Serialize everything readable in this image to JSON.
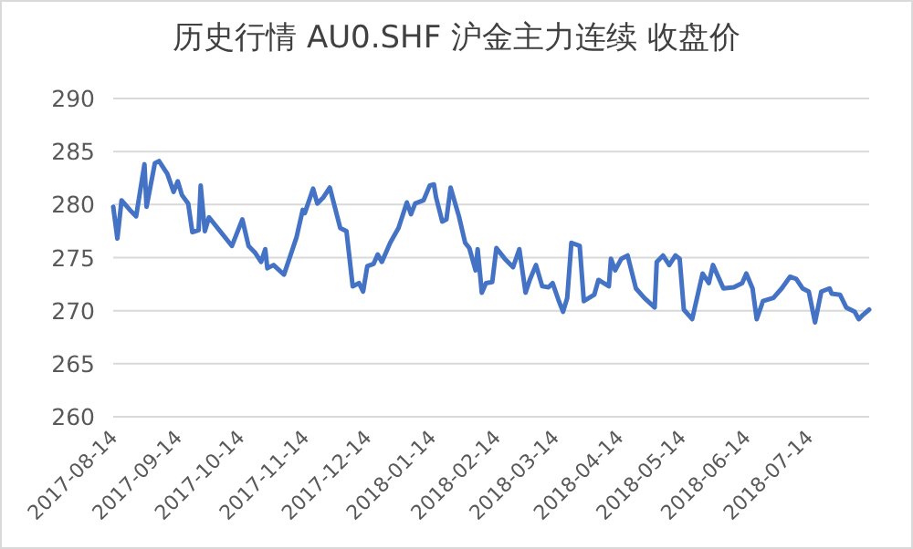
{
  "chart_data": {
    "type": "line",
    "title": "历史行情 AU0.SHF 沪金主力连续 收盘价",
    "x": [
      "2017-08-14",
      "2017-08-16",
      "2017-08-18",
      "2017-08-22",
      "2017-08-25",
      "2017-08-29",
      "2017-08-30",
      "2017-09-03",
      "2017-09-05",
      "2017-09-09",
      "2017-09-12",
      "2017-09-14",
      "2017-09-16",
      "2017-09-19",
      "2017-09-21",
      "2017-09-24",
      "2017-09-25",
      "2017-09-27",
      "2017-09-29",
      "2017-10-10",
      "2017-10-15",
      "2017-10-18",
      "2017-10-21",
      "2017-10-24",
      "2017-10-26",
      "2017-10-27",
      "2017-10-30",
      "2017-11-04",
      "2017-11-10",
      "2017-11-13",
      "2017-11-14",
      "2017-11-18",
      "2017-11-20",
      "2017-11-23",
      "2017-11-26",
      "2017-12-01",
      "2017-12-04",
      "2017-12-07",
      "2017-12-10",
      "2017-12-12",
      "2017-12-14",
      "2017-12-17",
      "2017-12-19",
      "2017-12-21",
      "2017-12-25",
      "2017-12-29",
      "2018-01-02",
      "2018-01-04",
      "2018-01-06",
      "2018-01-10",
      "2018-01-13",
      "2018-01-15",
      "2018-01-16",
      "2018-01-19",
      "2018-01-21",
      "2018-01-23",
      "2018-01-27",
      "2018-01-30",
      "2018-02-01",
      "2018-02-04",
      "2018-02-05",
      "2018-02-07",
      "2018-02-09",
      "2018-02-12",
      "2018-02-14",
      "2018-02-18",
      "2018-02-22",
      "2018-02-25",
      "2018-02-28",
      "2018-03-02",
      "2018-03-05",
      "2018-03-08",
      "2018-03-11",
      "2018-03-13",
      "2018-03-16",
      "2018-03-18",
      "2018-03-20",
      "2018-03-22",
      "2018-03-26",
      "2018-03-28",
      "2018-04-02",
      "2018-04-04",
      "2018-04-09",
      "2018-04-10",
      "2018-04-12",
      "2018-04-15",
      "2018-04-18",
      "2018-04-22",
      "2018-04-26",
      "2018-05-01",
      "2018-05-02",
      "2018-05-05",
      "2018-05-08",
      "2018-05-11",
      "2018-05-13",
      "2018-05-15",
      "2018-05-19",
      "2018-05-24",
      "2018-05-27",
      "2018-05-29",
      "2018-06-03",
      "2018-06-08",
      "2018-06-12",
      "2018-06-14",
      "2018-06-17",
      "2018-06-19",
      "2018-06-22",
      "2018-06-27",
      "2018-07-01",
      "2018-07-05",
      "2018-07-08",
      "2018-07-11",
      "2018-07-14",
      "2018-07-17",
      "2018-07-20",
      "2018-07-24",
      "2018-07-25",
      "2018-07-29",
      "2018-08-01",
      "2018-08-05",
      "2018-08-07",
      "2018-08-09",
      "2018-08-12"
    ],
    "series": [
      {
        "color": "#4472c4",
        "values": [
          279.8,
          276.8,
          280.4,
          279.5,
          278.9,
          283.8,
          279.8,
          283.9,
          284.1,
          282.9,
          281.2,
          282.2,
          280.9,
          280.1,
          277.4,
          277.6,
          281.8,
          277.5,
          278.8,
          276.1,
          278.6,
          276.1,
          275.5,
          274.6,
          275.8,
          274.0,
          274.3,
          273.4,
          276.9,
          279.5,
          279.2,
          281.5,
          280.1,
          280.7,
          281.6,
          277.8,
          277.5,
          272.3,
          272.6,
          271.8,
          274.2,
          274.4,
          275.3,
          274.6,
          276.4,
          277.8,
          280.2,
          279.1,
          280.1,
          280.4,
          281.8,
          281.9,
          280.7,
          278.4,
          278.6,
          281.6,
          278.9,
          276.4,
          275.9,
          273.8,
          275.8,
          271.7,
          272.6,
          272.7,
          275.9,
          274.9,
          274.1,
          275.8,
          271.7,
          272.9,
          274.3,
          272.3,
          272.2,
          272.6,
          270.9,
          269.9,
          271.2,
          276.4,
          276.1,
          270.9,
          271.5,
          272.9,
          272.3,
          274.9,
          273.8,
          274.9,
          275.2,
          272.1,
          271.2,
          270.3,
          274.6,
          275.2,
          274.3,
          275.2,
          274.9,
          270.1,
          269.2,
          273.5,
          272.6,
          274.3,
          272.1,
          272.2,
          272.6,
          273.5,
          272.1,
          269.2,
          270.9,
          271.2,
          272.1,
          273.2,
          273.0,
          272.1,
          271.8,
          268.9,
          271.8,
          272.1,
          271.6,
          271.5,
          270.3,
          269.9,
          269.2,
          269.6,
          270.1
        ]
      }
    ],
    "xlim": [
      "2017-08-14",
      "2018-08-12"
    ],
    "xticks": [
      "2017-08-14",
      "2017-09-14",
      "2017-10-14",
      "2017-11-14",
      "2017-12-14",
      "2018-01-14",
      "2018-02-14",
      "2018-03-14",
      "2018-04-14",
      "2018-05-14",
      "2018-06-14",
      "2018-07-14"
    ],
    "ylim": [
      260,
      290
    ],
    "yticks": [
      260,
      265,
      270,
      275,
      280,
      285,
      290
    ],
    "grid": "y",
    "marker": "none",
    "line_style": "solid"
  }
}
